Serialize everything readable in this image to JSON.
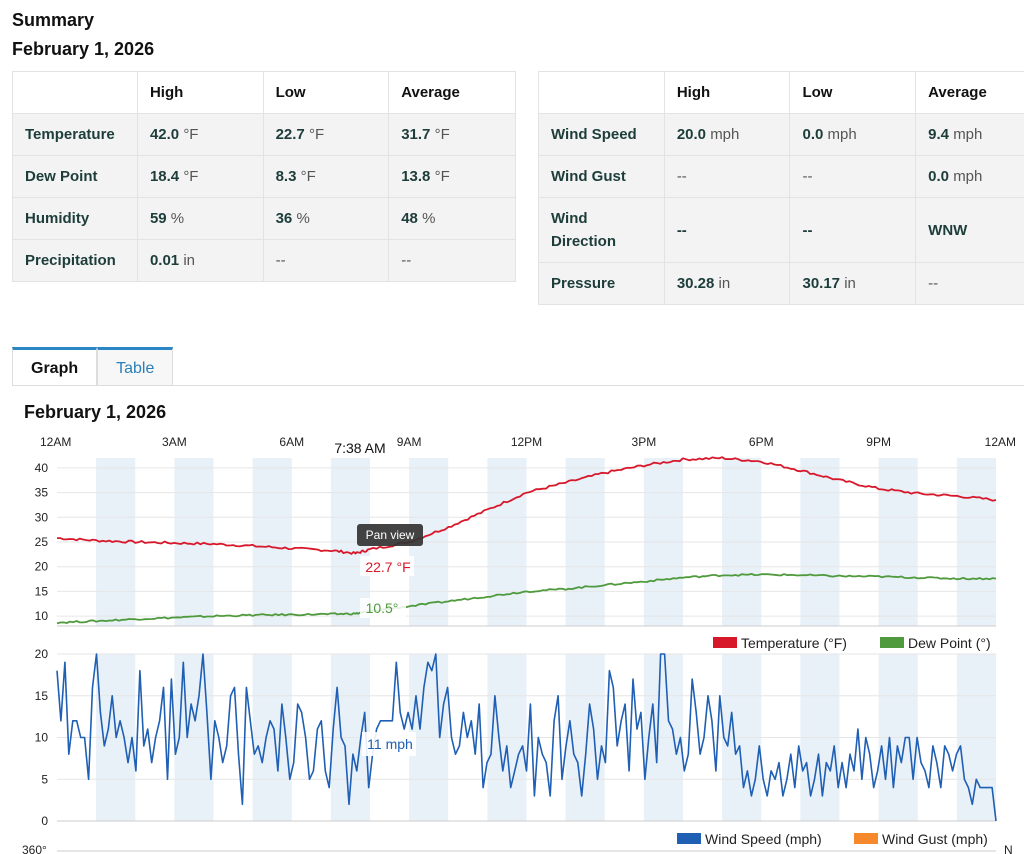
{
  "summary": {
    "title": "Summary",
    "date": "February 1, 2026",
    "left_table": {
      "headers": [
        "",
        "High",
        "Low",
        "Average"
      ],
      "rows": [
        {
          "label": "Temperature",
          "high": "42.0",
          "high_unit": "°F",
          "low": "22.7",
          "low_unit": "°F",
          "avg": "31.7",
          "avg_unit": "°F"
        },
        {
          "label": "Dew Point",
          "high": "18.4",
          "high_unit": "°F",
          "low": "8.3",
          "low_unit": "°F",
          "avg": "13.8",
          "avg_unit": "°F"
        },
        {
          "label": "Humidity",
          "high": "59",
          "high_unit": "%",
          "low": "36",
          "low_unit": "%",
          "avg": "48",
          "avg_unit": "%"
        },
        {
          "label": "Precipitation",
          "high": "0.01",
          "high_unit": "in",
          "low": "--",
          "low_unit": "",
          "avg": "--",
          "avg_unit": ""
        }
      ]
    },
    "right_table": {
      "headers": [
        "",
        "High",
        "Low",
        "Average"
      ],
      "rows": [
        {
          "label": "Wind Speed",
          "high": "20.0",
          "high_unit": "mph",
          "low": "0.0",
          "low_unit": "mph",
          "avg": "9.4",
          "avg_unit": "mph"
        },
        {
          "label": "Wind Gust",
          "high": "--",
          "high_unit": "",
          "low": "--",
          "low_unit": "",
          "avg": "0.0",
          "avg_unit": "mph"
        },
        {
          "label_line1": "Wind",
          "label_line2": "Direction",
          "high": "--",
          "low": "--",
          "avg": "WNW"
        },
        {
          "label": "Pressure",
          "high": "30.28",
          "high_unit": "in",
          "low": "30.17",
          "low_unit": "in",
          "avg": "--",
          "avg_unit": ""
        }
      ]
    }
  },
  "tabs": [
    {
      "label": "Graph",
      "active": true
    },
    {
      "label": "Table",
      "active": false
    }
  ],
  "graph": {
    "title": "February 1, 2026",
    "time_axis_labels": [
      "12AM",
      "3AM",
      "6AM",
      "9AM",
      "12PM",
      "3PM",
      "6PM",
      "9PM",
      "12AM"
    ],
    "crosshair_time": "7:38 AM",
    "tooltip_label": "Pan view",
    "temp_tooltip": "22.7 °F",
    "dew_tooltip": "10.5°",
    "wind_tooltip": "11 mph",
    "third_axis_top_label": "360°",
    "third_axis_partial_label": "N",
    "colors": {
      "temperature": "#d7182a",
      "dew_point": "#4e9a3c",
      "wind_speed": "#1f5fb4",
      "wind_gust": "#f5892b",
      "band": "#e8f0f8"
    }
  },
  "chart_data": [
    {
      "type": "line",
      "title": "",
      "ylabel": "",
      "ylim": [
        8,
        42
      ],
      "yticks": [
        10,
        15,
        20,
        25,
        30,
        35,
        40
      ],
      "x_hours": [
        0,
        1,
        2,
        3,
        4,
        5,
        6,
        7,
        7.633,
        8,
        9,
        10,
        11,
        12,
        13,
        14,
        15,
        16,
        17,
        18,
        19,
        20,
        21,
        22,
        23,
        24
      ],
      "series": [
        {
          "name": "Temperature (°F)",
          "color": "#d7182a",
          "values": [
            25.8,
            25.3,
            25.0,
            24.8,
            24.6,
            24.2,
            23.7,
            23.3,
            22.7,
            23.5,
            25.0,
            28.0,
            31.5,
            35.0,
            37.0,
            39.0,
            40.5,
            41.7,
            42.0,
            41.3,
            39.5,
            37.5,
            35.8,
            34.8,
            34.3,
            33.5
          ]
        },
        {
          "name": "Dew Point (°)",
          "color": "#4e9a3c",
          "values": [
            8.7,
            9.0,
            9.4,
            9.7,
            10.0,
            10.2,
            10.3,
            10.4,
            10.5,
            11.0,
            12.0,
            13.0,
            14.0,
            15.0,
            15.5,
            16.3,
            17.0,
            17.8,
            18.3,
            18.4,
            18.3,
            18.1,
            18.0,
            17.8,
            17.6,
            17.6
          ]
        }
      ]
    },
    {
      "type": "line",
      "title": "",
      "ylabel": "",
      "ylim": [
        0,
        20
      ],
      "yticks": [
        0,
        5,
        10,
        15,
        20
      ],
      "x_hours_range": [
        0,
        24
      ],
      "series": [
        {
          "name": "Wind Speed (mph)",
          "color": "#1f5fb4",
          "values": [
            18,
            12,
            19,
            8,
            12,
            12,
            10,
            10,
            5,
            16,
            20,
            13,
            9,
            11,
            15,
            10,
            12,
            10,
            7,
            10,
            6,
            18,
            9,
            11,
            7,
            10,
            12,
            16,
            5,
            17,
            8,
            10,
            19,
            10,
            14,
            12,
            15,
            20,
            13,
            5,
            12,
            10,
            7,
            9,
            15,
            16,
            8,
            2,
            16,
            12,
            8,
            9,
            7,
            10,
            12,
            11,
            6,
            14,
            10,
            5,
            7,
            14,
            13,
            10,
            5,
            6,
            11,
            12,
            6,
            4,
            11,
            16,
            10,
            9,
            2,
            8,
            6,
            10,
            13,
            4,
            8,
            11,
            12,
            12,
            12,
            12,
            19,
            13,
            11,
            13,
            11,
            15,
            11,
            16,
            19,
            18,
            20,
            10,
            14,
            16,
            10,
            8,
            9,
            13,
            10,
            12,
            8,
            14,
            4,
            7,
            8,
            15,
            10,
            6,
            9,
            4,
            6,
            8,
            9,
            6,
            14,
            3,
            10,
            8,
            7,
            3,
            12,
            15,
            5,
            9,
            12,
            8,
            7,
            3,
            8,
            14,
            11,
            5,
            9,
            7,
            18,
            16,
            9,
            12,
            14,
            6,
            17,
            11,
            13,
            5,
            10,
            14,
            7,
            20,
            20,
            12,
            11,
            8,
            10,
            6,
            8,
            17,
            13,
            8,
            10,
            15,
            12,
            6,
            15,
            10,
            9,
            13,
            8,
            9,
            4,
            6,
            3,
            5,
            9,
            5,
            3,
            6,
            5,
            7,
            3,
            5,
            8,
            4,
            9,
            6,
            7,
            3,
            5,
            8,
            3,
            7,
            6,
            9,
            4,
            7,
            4,
            8,
            6,
            11,
            5,
            10,
            8,
            4,
            6,
            9,
            5,
            10,
            4,
            9,
            7,
            10,
            10,
            5,
            10,
            7,
            6,
            4,
            9,
            7,
            4,
            9,
            8,
            6,
            8,
            9,
            5,
            4,
            2,
            5,
            4,
            4,
            4,
            4,
            0
          ]
        },
        {
          "name": "Wind Gust (mph)",
          "color": "#f5892b",
          "values": []
        }
      ]
    }
  ]
}
